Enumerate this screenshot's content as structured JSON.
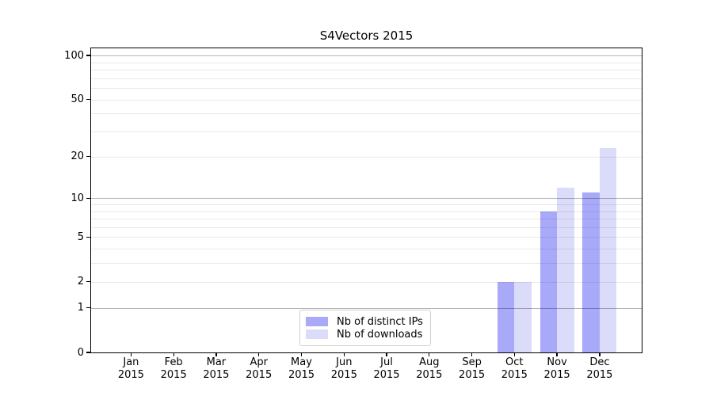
{
  "title": "S4Vectors 2015",
  "chart_data": {
    "type": "bar",
    "title": "S4Vectors 2015",
    "categories": [
      "Jan",
      "Feb",
      "Mar",
      "Apr",
      "May",
      "Jun",
      "Jul",
      "Aug",
      "Sep",
      "Oct",
      "Nov",
      "Dec"
    ],
    "category_year": "2015",
    "series": [
      {
        "name": "Nb of distinct IPs",
        "color": "#a9a9fa",
        "values": [
          0,
          0,
          0,
          0,
          0,
          0,
          0,
          0,
          0,
          2,
          8,
          11
        ]
      },
      {
        "name": "Nb of downloads",
        "color": "#dbdbfa",
        "values": [
          0,
          0,
          0,
          0,
          0,
          0,
          0,
          0,
          0,
          2,
          12,
          23
        ]
      }
    ],
    "y_axis": {
      "scale": "log1p",
      "labeled_ticks": [
        0,
        1,
        2,
        5,
        10,
        20,
        50,
        100
      ],
      "decade_gridlines": [
        1,
        10,
        100
      ],
      "light_gridlines": [
        2,
        3,
        4,
        5,
        6,
        7,
        8,
        9,
        20,
        30,
        40,
        50,
        60,
        70,
        80,
        90
      ],
      "ylim_top_value": 112
    },
    "grid": true,
    "legend_position": "bottom-center",
    "legend_entries": [
      "Nb of distinct IPs",
      "Nb of downloads"
    ]
  },
  "colors": {
    "distinct_ips_bar": "#a9a9fa",
    "downloads_bar": "#dbdbfa",
    "decade_gridline": "rgba(0,0,0,0.29)",
    "light_gridline": "rgba(0,0,0,0.085)",
    "axis_frame": "#000000",
    "background": "#ffffff"
  }
}
